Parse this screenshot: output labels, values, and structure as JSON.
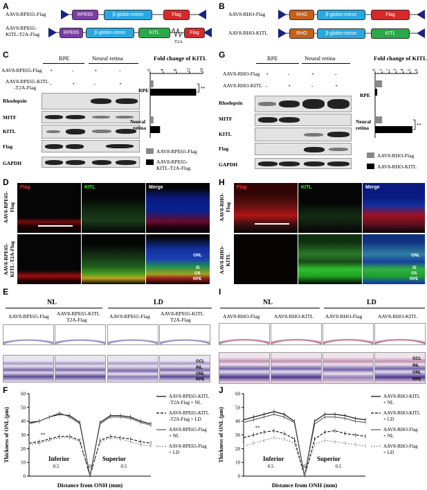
{
  "panels": {
    "A": "A",
    "B": "B",
    "C": "C",
    "D": "D",
    "E": "E",
    "F": "F",
    "G": "G",
    "H": "H",
    "I": "I",
    "J": "J"
  },
  "constructsA": {
    "row1_label": "AAV8-RPE65-Flag",
    "row2_label_l1": "AAV8-RPE65-",
    "row2_label_l2": "KITL-T2A-Flag",
    "rpe65": "RPE65",
    "intron": "β-globin-intron",
    "flag": "Flag",
    "kitl": "KITL",
    "t2a": "T2A"
  },
  "constructsB": {
    "row1_label": "AAV8-RHO-Flag",
    "row2_label": "AAV8-RHO-KITL",
    "rho": "RHO",
    "intron": "β-globin-intron",
    "flag": "Flag",
    "kitl": "KITL"
  },
  "blotC": {
    "header_rpe": "RPE",
    "header_nr": "Neural retina",
    "cond1": "AAV8-RPE65-Flag",
    "cond2_l1": "AAV8-RPE65-KITL",
    "cond2_l2": "-T2A-Flag",
    "row1_marks": [
      "+",
      "-",
      "+",
      "-"
    ],
    "row2_marks": [
      "-",
      "+",
      "-",
      "+"
    ],
    "proteins": [
      "Rhodopsin",
      "MITF",
      "KITL",
      "Flag",
      "GAPDH"
    ]
  },
  "blotG": {
    "header_rpe": "RPE",
    "header_nr": "Neural retina",
    "cond1": "AAV8-RHO-Flag",
    "cond2": "AAV8-RHO-KITL",
    "row1_marks": [
      "+",
      "-",
      "+",
      "-"
    ],
    "row2_marks": [
      "-",
      "+",
      "-",
      "+"
    ],
    "proteins": [
      "Rhodopsin",
      "MITF",
      "KITL",
      "Flag",
      "GAPDH"
    ]
  },
  "chartC": {
    "title": "Fold change of KITL",
    "ticks": [
      "0",
      "4",
      "8",
      "12",
      "16"
    ],
    "cat1": "RPE",
    "cat2_l1": "Neural",
    "cat2_l2": "retina",
    "sig": "**",
    "legend1": "AAV8-RPE65-Flag",
    "legend2_l1": "AAV8-RPE65-",
    "legend2_l2": "KITL-T2A-Flag"
  },
  "chartG": {
    "title": "Fold change of KITL",
    "ticks": [
      "0",
      "1",
      "2",
      "3",
      "4",
      "5",
      "6"
    ],
    "cat1": "RPE",
    "cat2_l1": "Neural",
    "cat2_l2": "retina",
    "sig": "**",
    "legend1": "AAV8-RHO-Flag",
    "legend2": "AAV8-RHO-KITL"
  },
  "fluorD": {
    "col1": "Flag",
    "col2": "KITL",
    "col3": "Merge",
    "row1_l1": "AAV8-RPE65-",
    "row1_l2": "Flag",
    "row2_l1": "AAV8-RPE65-",
    "row2_l2": "KITL-T2A-Flag",
    "layers": [
      "ONL",
      "IS",
      "OS",
      "RPE"
    ]
  },
  "fluorH": {
    "col1": "Flag",
    "col2": "KITL",
    "col3": "Merge",
    "row1_l1": "AAV8-RHO-",
    "row1_l2": "Flag",
    "row2_l1": "AAV8-RHO-",
    "row2_l2": "KITL",
    "layers": [
      "ONL",
      "IS",
      "OS",
      "RPE"
    ]
  },
  "histE": {
    "nl": "NL",
    "ld": "LD",
    "c1": "AAV8-RPE65-Flag",
    "c2_l1": "AAV8-RPE65-KITL",
    "c2_l2": "T2A-Flag",
    "c3": "AAV8-RPE65-Flag",
    "c4_l1": "AAV8-RPE65-KITL",
    "c4_l2": "T2A-Flag",
    "layers": [
      "GCL",
      "INL",
      "ONL",
      "RPE"
    ]
  },
  "histI": {
    "nl": "NL",
    "ld": "LD",
    "c1": "AAV8-RHO-Flag",
    "c2": "AAV8-RHO-KITL",
    "c3": "AAV8-RHO-Flag",
    "c4": "AAV8-RHO-KITL",
    "layers": [
      "GCL",
      "INL",
      "ONL",
      "RPE"
    ]
  },
  "chart_data": [
    {
      "type": "line",
      "ylabel": "Thickness of ONL (μm)",
      "xlabel": "Distance from ONH (mm)",
      "ylim": [
        0,
        60
      ],
      "yticks": [
        "0",
        "10",
        "20",
        "30",
        "40",
        "50",
        "60"
      ],
      "xticks": [
        "0.5",
        "0",
        "0.5"
      ],
      "regions": [
        "Inferior",
        "Superior"
      ],
      "sig": "**",
      "x": [
        -0.9,
        -0.75,
        -0.6,
        -0.45,
        -0.3,
        -0.15,
        0,
        0.15,
        0.3,
        0.45,
        0.6,
        0.75,
        0.9
      ],
      "series": [
        {
          "name": "AAV8-RPE65-KITL -T2A-Flag + NL",
          "label_l1": "AAV8-RPE65-KITL",
          "label_l2": "-T2A-Flag + NL",
          "values": [
            39,
            40,
            43,
            45,
            44,
            39,
            0,
            39,
            44,
            44,
            43,
            40,
            38
          ],
          "dash": "",
          "color": "#000"
        },
        {
          "name": "AAV8-RPE65-KITL -T2A-Flag + LD",
          "label_l1": "AAV8-RPE65-KITL",
          "label_l2": "-T2A-Flag + LD",
          "values": [
            24,
            25,
            27,
            29,
            29,
            26,
            0,
            26,
            29,
            28,
            27,
            25,
            24
          ],
          "dash": "4,2",
          "color": "#000"
        },
        {
          "name": "AAV8-RPE65-Flag + NL",
          "label_l1": "AAV8-RPE65-Flag",
          "label_l2": "+ NL",
          "values": [
            38,
            40,
            43,
            46,
            43,
            38,
            0,
            38,
            43,
            43,
            42,
            39,
            37
          ],
          "dash": "",
          "color": "#555"
        },
        {
          "name": "AAV8-RPE65-Flag + LD",
          "label_l1": "AAV8-RPE65-Flag",
          "label_l2": "+ LD",
          "values": [
            23,
            24,
            26,
            28,
            28,
            25,
            0,
            25,
            28,
            27,
            25,
            23,
            22
          ],
          "dash": "2,2",
          "color": "#777"
        }
      ]
    },
    {
      "type": "line",
      "ylabel": "Thickness of ONL (μm)",
      "xlabel": "Distance from ONH (mm)",
      "ylim": [
        0,
        60
      ],
      "yticks": [
        "0",
        "10",
        "20",
        "30",
        "40",
        "50",
        "60"
      ],
      "xticks": [
        "0.5",
        "0",
        "0.5"
      ],
      "regions": [
        "Inferior",
        "Superior"
      ],
      "sig": "**",
      "x": [
        -0.9,
        -0.75,
        -0.6,
        -0.45,
        -0.3,
        -0.15,
        0,
        0.15,
        0.3,
        0.45,
        0.6,
        0.75,
        0.9
      ],
      "series": [
        {
          "name": "AAV8-RHO-KITL + NL",
          "label_l1": "AAV8-RHO-KITL",
          "label_l2": "+ NL",
          "values": [
            41,
            43,
            45,
            47,
            45,
            40,
            0,
            40,
            45,
            45,
            44,
            42,
            41
          ],
          "dash": "",
          "color": "#000"
        },
        {
          "name": "AAV8-RHO-KITL + LD",
          "label_l1": "AAV8-RHO-KITL",
          "label_l2": "+ LD",
          "values": [
            28,
            30,
            32,
            33,
            31,
            27,
            0,
            27,
            32,
            33,
            31,
            30,
            29
          ],
          "dash": "4,2",
          "color": "#000"
        },
        {
          "name": "AAV8-RHO-Flag + NL",
          "label_l1": "AAV8-RHO-Flag",
          "label_l2": "+ NL",
          "values": [
            39,
            41,
            43,
            45,
            43,
            39,
            0,
            38,
            43,
            43,
            42,
            40,
            39
          ],
          "dash": "",
          "color": "#555"
        },
        {
          "name": "AAV8-RHO-Flag + LD",
          "label_l1": "AAV8-RHO-Flag",
          "label_l2": "+ LD",
          "values": [
            22,
            24,
            26,
            28,
            27,
            24,
            0,
            23,
            26,
            25,
            24,
            23,
            22
          ],
          "dash": "2,2",
          "color": "#888"
        }
      ]
    },
    {
      "type": "bar",
      "orientation": "horizontal",
      "title": "Fold change of KITL",
      "categories": [
        "RPE",
        "Neural retina"
      ],
      "xlim": [
        0,
        16
      ],
      "series": [
        {
          "name": "AAV8-RPE65-Flag",
          "values": [
            1,
            1
          ],
          "color": "#888"
        },
        {
          "name": "AAV8-RPE65-KITL-T2A-Flag",
          "values": [
            14,
            3
          ],
          "color": "#000"
        }
      ]
    },
    {
      "type": "bar",
      "orientation": "horizontal",
      "title": "Fold change of KITL",
      "categories": [
        "RPE",
        "Neural retina"
      ],
      "xlim": [
        0,
        6
      ],
      "series": [
        {
          "name": "AAV8-RHO-Flag",
          "values": [
            1,
            1
          ],
          "color": "#888"
        },
        {
          "name": "AAV8-RHO-KITL",
          "values": [
            0.3,
            5.3
          ],
          "color": "#000"
        }
      ]
    }
  ]
}
